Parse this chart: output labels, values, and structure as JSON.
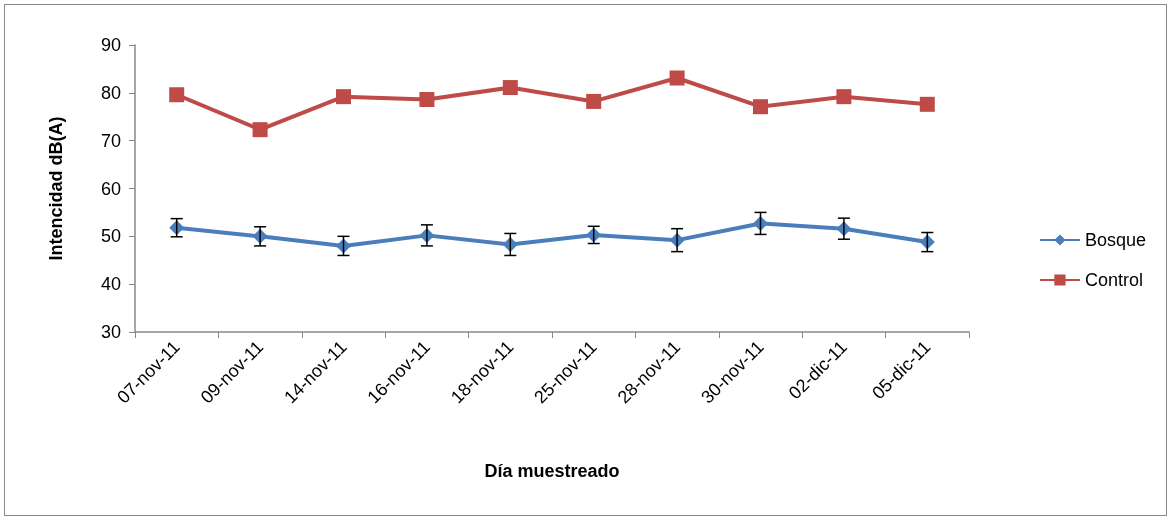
{
  "chart_data": {
    "type": "line",
    "xlabel": "Día muestreado",
    "ylabel": "Intencidad dB(A)",
    "categories": [
      "07-nov-11",
      "09-nov-11",
      "14-nov-11",
      "16-nov-11",
      "18-nov-11",
      "25-nov-11",
      "28-nov-11",
      "30-nov-11",
      "02-dic-11",
      "05-dic-11"
    ],
    "series": [
      {
        "name": "Bosque",
        "color": "#4a7ebb",
        "marker": "diamond",
        "values": [
          51.8,
          50.0,
          48.0,
          50.2,
          48.3,
          50.3,
          49.2,
          52.7,
          51.6,
          48.8
        ],
        "errors": [
          1.9,
          2.0,
          2.0,
          2.2,
          2.3,
          1.8,
          2.4,
          2.3,
          2.2,
          2.0
        ]
      },
      {
        "name": "Control",
        "color": "#be4b48",
        "marker": "square",
        "values": [
          79.6,
          72.3,
          79.2,
          78.6,
          81.1,
          78.2,
          83.1,
          77.1,
          79.2,
          77.6
        ]
      }
    ],
    "ylim": [
      30,
      90
    ],
    "yticks": [
      30,
      40,
      50,
      60,
      70,
      80,
      90
    ],
    "grid": false,
    "legend": "right"
  }
}
